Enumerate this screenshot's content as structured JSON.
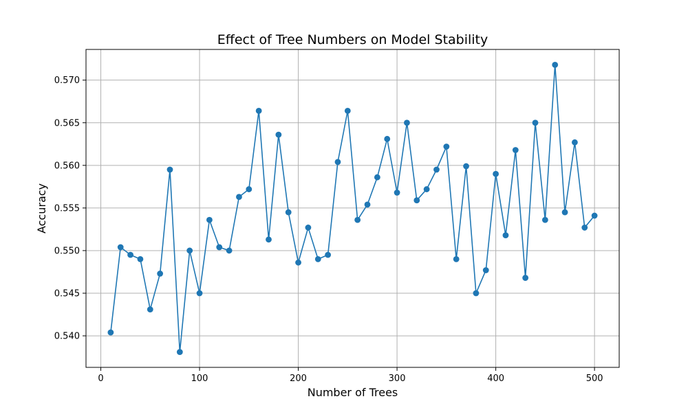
{
  "chart_data": {
    "type": "line",
    "title": "Effect of Tree Numbers on Model Stability",
    "xlabel": "Number of Trees",
    "ylabel": "Accuracy",
    "xlim": [
      -15,
      525
    ],
    "ylim": [
      0.5363,
      0.5736
    ],
    "xticks": [
      0,
      100,
      200,
      300,
      400,
      500
    ],
    "yticks": [
      0.54,
      0.545,
      0.55,
      0.555,
      0.56,
      0.565,
      0.57
    ],
    "ytick_labels": [
      "0.540",
      "0.545",
      "0.550",
      "0.555",
      "0.560",
      "0.565",
      "0.570"
    ],
    "grid": true,
    "marker": "circle",
    "color": "#1f77b4",
    "series": [
      {
        "x": [
          10,
          20,
          30,
          40,
          50,
          60,
          70,
          80,
          90,
          100,
          110,
          120,
          130,
          140,
          150,
          160,
          170,
          180,
          190,
          200,
          210,
          220,
          230,
          240,
          250,
          260,
          270,
          280,
          290,
          300,
          310,
          320,
          330,
          340,
          350,
          360,
          370,
          380,
          390,
          400,
          410,
          420,
          430,
          440,
          450,
          460,
          470,
          480,
          490,
          500
        ],
        "values": [
          0.5404,
          0.5504,
          0.5495,
          0.549,
          0.5431,
          0.5473,
          0.5595,
          0.5381,
          0.55,
          0.545,
          0.5536,
          0.5504,
          0.55,
          0.5563,
          0.5572,
          0.5664,
          0.5513,
          0.5636,
          0.5545,
          0.5486,
          0.5527,
          0.549,
          0.5495,
          0.5604,
          0.5664,
          0.5536,
          0.5554,
          0.5586,
          0.5631,
          0.5568,
          0.565,
          0.5559,
          0.5572,
          0.5595,
          0.5622,
          0.549,
          0.5599,
          0.545,
          0.5477,
          0.559,
          0.5518,
          0.5618,
          0.5468,
          0.565,
          0.5536,
          0.5718,
          0.5545,
          0.5627,
          0.5527,
          0.5541
        ]
      }
    ]
  }
}
